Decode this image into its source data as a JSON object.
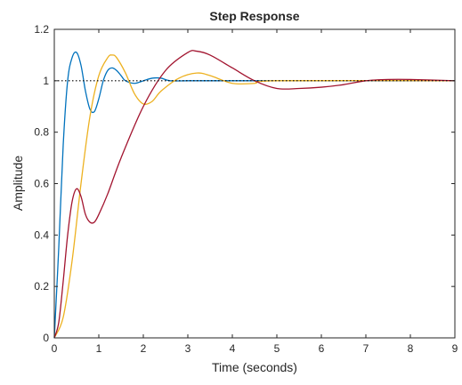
{
  "chart_data": {
    "type": "line",
    "title": "Step Response",
    "xlabel": "Time (seconds)",
    "ylabel": "Amplitude",
    "xlim": [
      0,
      9
    ],
    "ylim": [
      0,
      1.2
    ],
    "xticks": [
      0,
      1,
      2,
      3,
      4,
      5,
      6,
      7,
      8,
      9
    ],
    "yticks": [
      0,
      0.2,
      0.4,
      0.6,
      0.8,
      1,
      1.2
    ],
    "grid": false,
    "reference_line": {
      "y": 1,
      "style": "dotted",
      "color": "#000000"
    },
    "series": [
      {
        "color": "#0072BD",
        "x": [
          0,
          0.1,
          0.2,
          0.3,
          0.4,
          0.5,
          0.6,
          0.7,
          0.8,
          0.9,
          1.0,
          1.1,
          1.2,
          1.3,
          1.4,
          1.5,
          1.6,
          1.8,
          2.0,
          2.2,
          2.4,
          2.6,
          3.0,
          4.0,
          9.0
        ],
        "y": [
          0,
          0.35,
          0.75,
          1.0,
          1.09,
          1.11,
          1.06,
          0.96,
          0.89,
          0.88,
          0.93,
          1.0,
          1.04,
          1.05,
          1.04,
          1.02,
          1.0,
          0.99,
          1.0,
          1.01,
          1.01,
          1.0,
          1.0,
          1.0,
          1.0
        ]
      },
      {
        "color": "#EDB120",
        "x": [
          0,
          0.2,
          0.4,
          0.6,
          0.8,
          1.0,
          1.2,
          1.3,
          1.4,
          1.6,
          1.8,
          2.0,
          2.2,
          2.4,
          2.8,
          3.2,
          3.5,
          4.0,
          4.5,
          5.0,
          9.0
        ],
        "y": [
          0,
          0.08,
          0.3,
          0.6,
          0.86,
          1.02,
          1.09,
          1.1,
          1.09,
          1.03,
          0.95,
          0.91,
          0.92,
          0.96,
          1.01,
          1.03,
          1.02,
          0.99,
          0.99,
          1.0,
          1.0
        ]
      },
      {
        "color": "#A2142F",
        "x": [
          0,
          0.1,
          0.2,
          0.3,
          0.4,
          0.5,
          0.6,
          0.7,
          0.8,
          0.9,
          1.0,
          1.2,
          1.5,
          2.0,
          2.5,
          3.0,
          3.2,
          3.5,
          4.0,
          4.5,
          5.0,
          5.5,
          6.0,
          6.5,
          7.0,
          7.5,
          8.0,
          9.0
        ],
        "y": [
          0,
          0.06,
          0.22,
          0.4,
          0.53,
          0.58,
          0.55,
          0.48,
          0.45,
          0.45,
          0.48,
          0.56,
          0.7,
          0.9,
          1.04,
          1.11,
          1.115,
          1.1,
          1.05,
          1.0,
          0.97,
          0.97,
          0.975,
          0.985,
          1.0,
          1.005,
          1.005,
          1.0
        ]
      }
    ]
  }
}
